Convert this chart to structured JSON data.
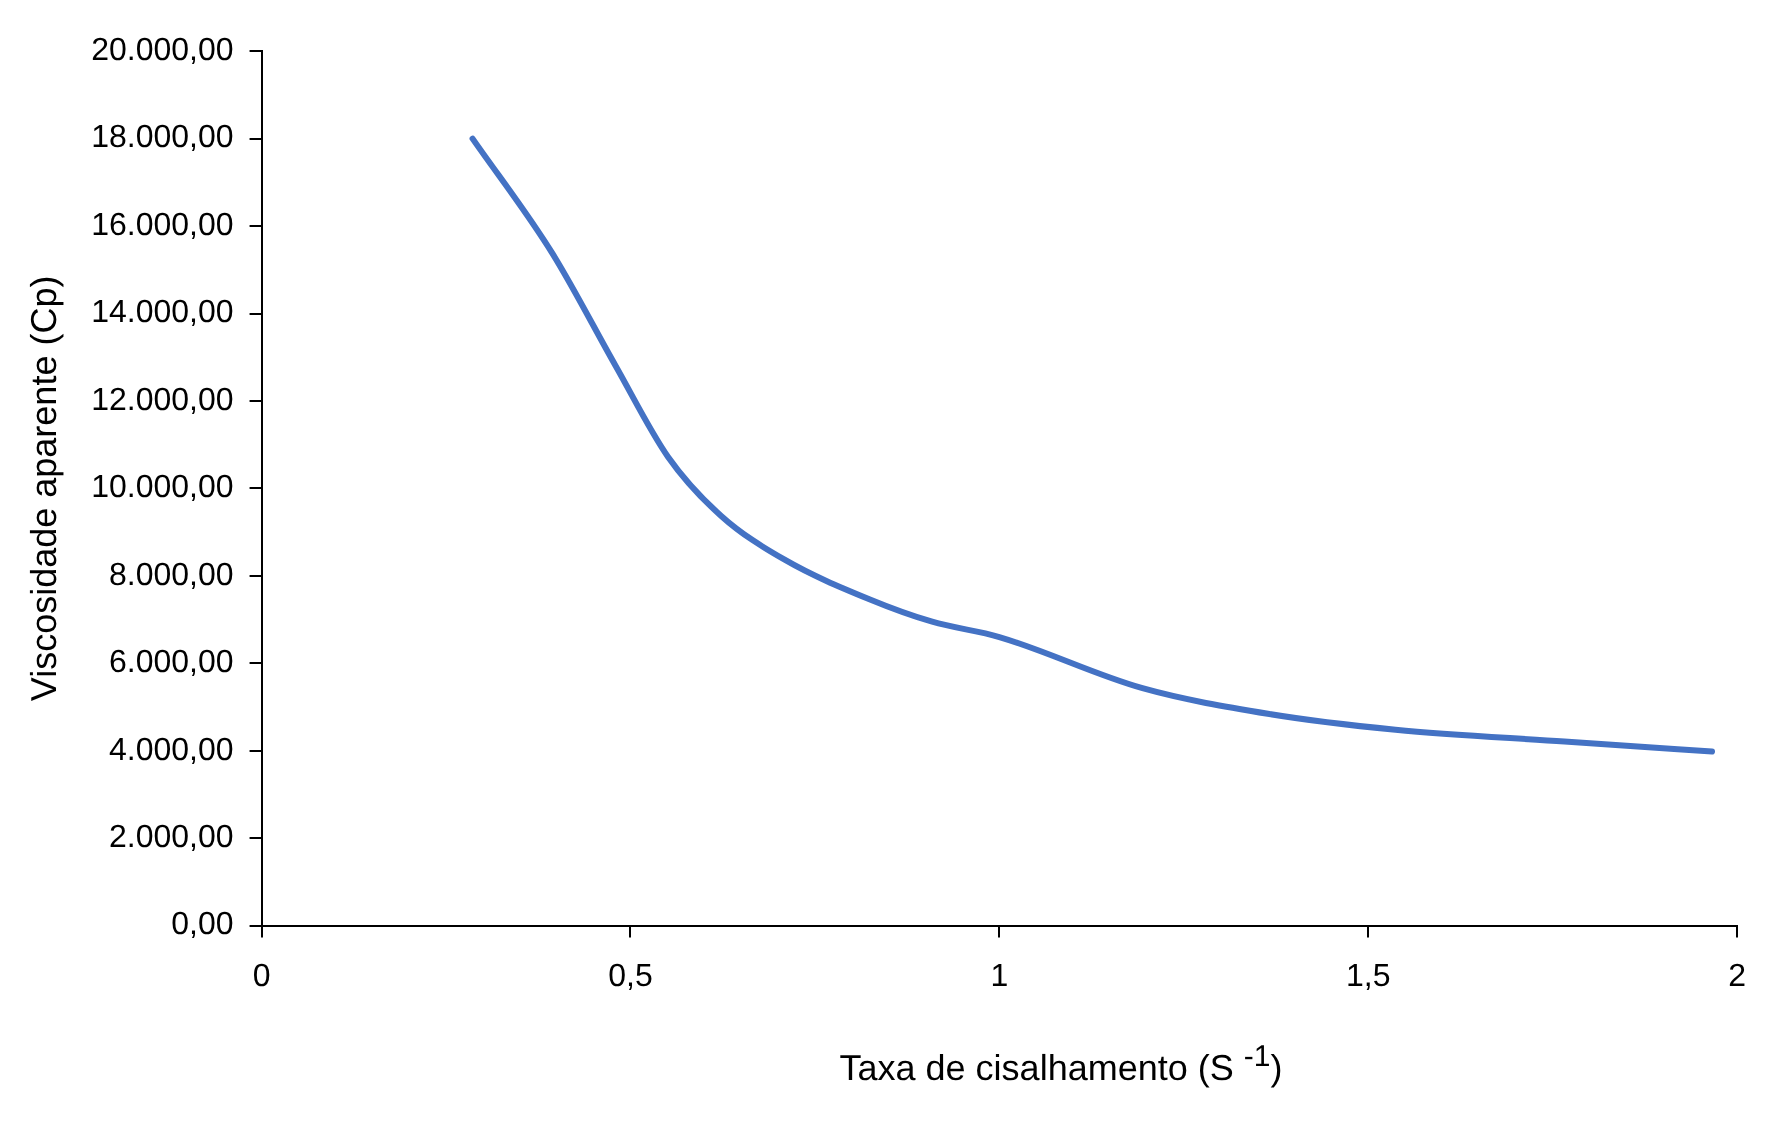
{
  "chart_data": {
    "type": "line",
    "xlabel": "Taxa de cisalhamento (S $^{-1}$)",
    "ylabel": "Viscosidade aparente (Cp)",
    "x": [
      0.286,
      0.394,
      0.48,
      0.551,
      0.623,
      0.709,
      0.823,
      0.909,
      1.0,
      1.194,
      1.366,
      1.537,
      1.766,
      1.966
    ],
    "series": [
      {
        "color": "#4472c4",
        "values": [
          18000,
          15380,
          12800,
          10720,
          9370,
          8370,
          7470,
          6950,
          6600,
          5430,
          4840,
          4480,
          4210,
          3980
        ]
      }
    ],
    "xlim": [
      0,
      2
    ],
    "xticks": [
      0,
      {
        "value": 0.5,
        "label": "0,5"
      },
      1,
      {
        "value": 1.5,
        "label": "1,5"
      },
      2
    ],
    "ylim": [
      0,
      20000
    ],
    "yticks": [
      {
        "value": 0,
        "label": "0,00"
      },
      {
        "value": 2000,
        "label": "2.000,00"
      },
      {
        "value": 4000,
        "label": "4.000,00"
      },
      {
        "value": 6000,
        "label": "6.000,00"
      },
      {
        "value": 8000,
        "label": "8.000,00"
      },
      {
        "value": 10000,
        "label": "10.000,00"
      },
      {
        "value": 12000,
        "label": "12.000,00"
      },
      {
        "value": 14000,
        "label": "14.000,00"
      },
      {
        "value": 16000,
        "label": "16.000,00"
      },
      {
        "value": 18000,
        "label": "18.000,00"
      },
      {
        "value": 20000,
        "label": "20.000,00"
      }
    ],
    "grid": false,
    "legend": false,
    "marker": "none",
    "line_style": "solid"
  }
}
